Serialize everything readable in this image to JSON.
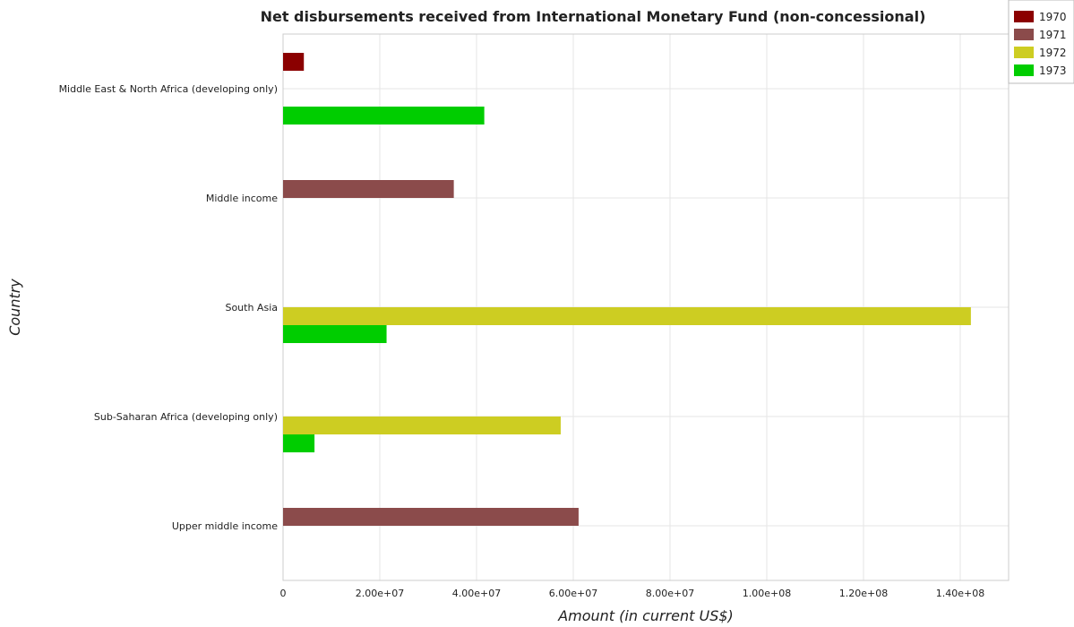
{
  "chart_data": {
    "type": "bar",
    "orientation": "horizontal",
    "title": "Net disbursements received from International Monetary Fund (non-concessional)",
    "xlabel": "Amount (in current US$)",
    "ylabel": "Country",
    "xlim": [
      0,
      150000000
    ],
    "xticks": [
      0,
      20000000,
      40000000,
      60000000,
      80000000,
      100000000,
      120000000,
      140000000
    ],
    "xtick_labels": [
      "0",
      "2.00e+07",
      "4.00e+07",
      "6.00e+07",
      "8.00e+07",
      "1.00e+08",
      "1.20e+08",
      "1.40e+08"
    ],
    "grid": true,
    "legend_position": "top-right",
    "categories": [
      "Middle East & North Africa (developing only)",
      "Middle income",
      "South Asia",
      "Sub-Saharan Africa (developing only)",
      "Upper middle income"
    ],
    "series": [
      {
        "name": "1970",
        "color": "#8b0000",
        "values": [
          4300000,
          0,
          0,
          0,
          0
        ]
      },
      {
        "name": "1971",
        "color": "#8b4b4b",
        "values": [
          0,
          35300000,
          0,
          0,
          61100000
        ]
      },
      {
        "name": "1972",
        "color": "#cdcd22",
        "values": [
          0,
          0,
          142200000,
          57400000,
          0
        ]
      },
      {
        "name": "1973",
        "color": "#00cd00",
        "values": [
          41600000,
          0,
          21400000,
          6500000,
          0
        ]
      }
    ]
  }
}
